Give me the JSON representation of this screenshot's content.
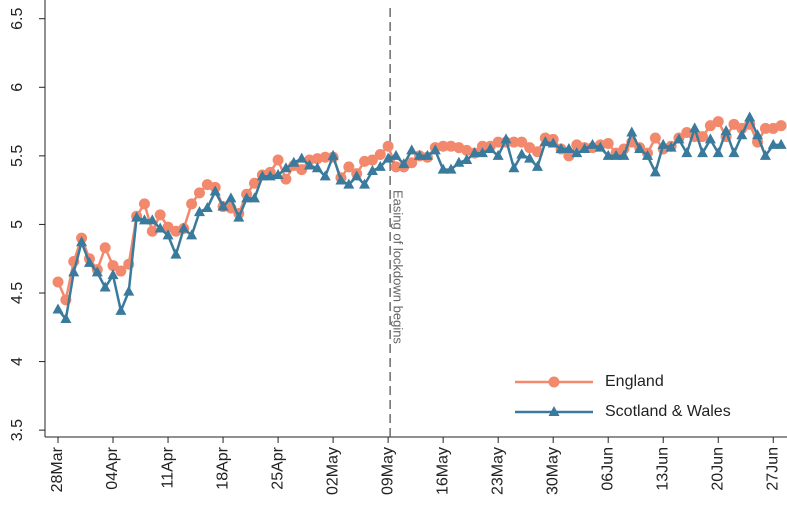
{
  "chart_data": {
    "type": "line",
    "categories": [
      "28Mar",
      null,
      null,
      null,
      null,
      null,
      null,
      "04Apr",
      null,
      null,
      null,
      null,
      null,
      null,
      "11Apr",
      null,
      null,
      null,
      null,
      null,
      null,
      "18Apr",
      null,
      null,
      null,
      null,
      null,
      null,
      "25Apr",
      null,
      null,
      null,
      null,
      null,
      null,
      "02May",
      null,
      null,
      null,
      null,
      null,
      null,
      "09May",
      null,
      null,
      null,
      null,
      null,
      null,
      "16May",
      null,
      null,
      null,
      null,
      null,
      null,
      "23May",
      null,
      null,
      null,
      null,
      null,
      null,
      "30May",
      null,
      null,
      null,
      null,
      null,
      null,
      "06Jun",
      null,
      null,
      null,
      null,
      null,
      null,
      "13Jun",
      null,
      null,
      null,
      null,
      null,
      null,
      "20Jun",
      null,
      null,
      null,
      null,
      null,
      null,
      "27Jun",
      null
    ],
    "series": [
      {
        "name": "England",
        "color": "#f2896d",
        "marker": "circle",
        "values": [
          4.58,
          4.45,
          4.73,
          4.9,
          4.75,
          4.67,
          4.83,
          4.7,
          4.66,
          4.71,
          5.06,
          5.15,
          4.95,
          5.07,
          4.98,
          4.95,
          4.97,
          5.15,
          5.23,
          5.29,
          5.27,
          5.13,
          5.12,
          5.08,
          5.22,
          5.3,
          5.36,
          5.38,
          5.47,
          5.33,
          5.43,
          5.4,
          5.47,
          5.48,
          5.49,
          5.49,
          5.34,
          5.42,
          5.37,
          5.46,
          5.47,
          5.51,
          5.57,
          5.42,
          5.42,
          5.45,
          5.5,
          5.49,
          5.56,
          5.57,
          5.57,
          5.56,
          5.54,
          5.52,
          5.57,
          5.57,
          5.6,
          5.6,
          5.6,
          5.6,
          5.56,
          5.53,
          5.63,
          5.62,
          5.55,
          5.5,
          5.58,
          5.56,
          5.56,
          5.58,
          5.59,
          5.52,
          5.55,
          5.6,
          5.56,
          5.52,
          5.63,
          5.55,
          5.57,
          5.63,
          5.67,
          5.64,
          5.64,
          5.72,
          5.75,
          5.64,
          5.73,
          5.7,
          5.73,
          5.6,
          5.7,
          5.7,
          5.72
        ]
      },
      {
        "name": "Scotland & Wales",
        "color": "#3a7a9c",
        "marker": "triangle",
        "values": [
          4.38,
          4.31,
          4.65,
          4.87,
          4.72,
          4.65,
          4.54,
          4.63,
          4.37,
          4.51,
          5.05,
          5.03,
          5.03,
          4.97,
          4.92,
          4.78,
          4.97,
          4.92,
          5.09,
          5.12,
          5.24,
          5.13,
          5.19,
          5.05,
          5.19,
          5.19,
          5.35,
          5.35,
          5.36,
          5.41,
          5.45,
          5.48,
          5.43,
          5.41,
          5.35,
          5.5,
          5.32,
          5.29,
          5.35,
          5.29,
          5.39,
          5.42,
          5.48,
          5.5,
          5.44,
          5.54,
          5.5,
          5.5,
          5.54,
          5.4,
          5.4,
          5.45,
          5.47,
          5.52,
          5.52,
          5.55,
          5.5,
          5.62,
          5.41,
          5.51,
          5.48,
          5.42,
          5.6,
          5.59,
          5.55,
          5.55,
          5.52,
          5.55,
          5.58,
          5.56,
          5.5,
          5.5,
          5.5,
          5.67,
          5.55,
          5.5,
          5.38,
          5.58,
          5.56,
          5.62,
          5.52,
          5.7,
          5.52,
          5.62,
          5.52,
          5.68,
          5.52,
          5.65,
          5.78,
          5.65,
          5.5,
          5.58,
          5.58
        ]
      }
    ],
    "ylim": [
      3.45,
      6.6
    ],
    "yticks": [
      3.5,
      4,
      4.5,
      5,
      5.5,
      6,
      6.5
    ],
    "vline": {
      "category": "09May",
      "label": "Easing of lockdown begins"
    },
    "legend": "bottom-right",
    "grid": false
  }
}
